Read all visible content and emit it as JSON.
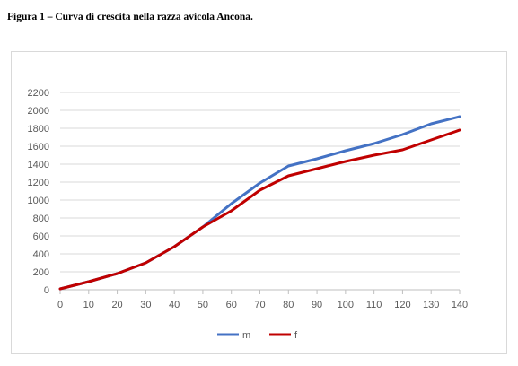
{
  "caption": "Figura 1 – Curva di crescita nella razza avicola Ancona.",
  "chart_data": {
    "type": "line",
    "title": "",
    "xlabel": "",
    "ylabel": "",
    "x": [
      0,
      10,
      20,
      30,
      40,
      50,
      60,
      70,
      80,
      90,
      100,
      110,
      120,
      130,
      140
    ],
    "ylim": [
      0,
      2200
    ],
    "yticks": [
      0,
      200,
      400,
      600,
      800,
      1000,
      1200,
      1400,
      1600,
      1800,
      2000,
      2200
    ],
    "grid": true,
    "legend_position": "bottom",
    "series": [
      {
        "name": "m",
        "color": "#4472c4",
        "values": [
          10,
          90,
          180,
          300,
          480,
          700,
          960,
          1190,
          1380,
          1460,
          1550,
          1630,
          1730,
          1850,
          1930
        ]
      },
      {
        "name": "f",
        "color": "#c00000",
        "values": [
          10,
          90,
          180,
          300,
          480,
          700,
          880,
          1110,
          1270,
          1350,
          1430,
          1500,
          1560,
          1670,
          1780
        ]
      }
    ]
  }
}
